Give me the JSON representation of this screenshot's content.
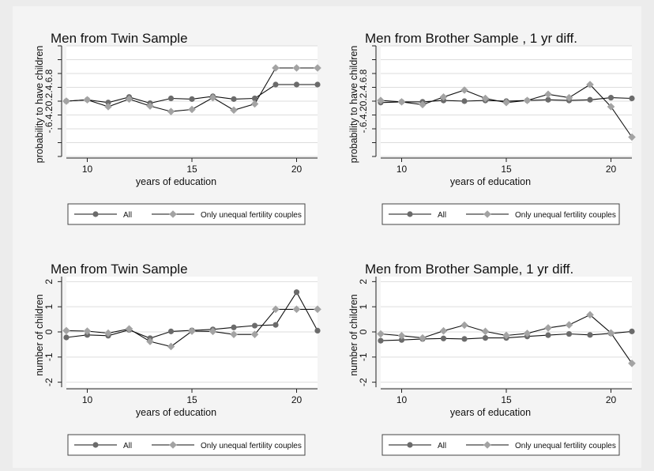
{
  "legend_labels": [
    "All",
    "Only unequal fertility couples"
  ],
  "colors": {
    "all": "#6b6b6b",
    "unequal": "#a3a3a3",
    "line": "#111111",
    "grid": "#dddddd",
    "plot_bg": "#ffffff",
    "panel_bg": "#f4f4f4",
    "page_bg": "#ececec"
  },
  "chart_data": [
    {
      "type": "line",
      "title": "Men from Twin Sample",
      "xlabel": "years of education",
      "ylabel": "probability to have children",
      "xlim": [
        9,
        21
      ],
      "ylim": [
        -0.8,
        0.8
      ],
      "xticks": [
        10,
        15,
        20
      ],
      "yticks": [
        -0.8,
        -0.6,
        -0.4,
        -0.2,
        0,
        0.2,
        0.4,
        0.6,
        0.8
      ],
      "ytick_text": "-.6.4.20.2.4.6.8",
      "x": [
        9,
        10,
        11,
        12,
        13,
        14,
        15,
        16,
        17,
        18,
        19,
        20,
        21
      ],
      "series": [
        {
          "name": "All",
          "values": [
            0.0,
            0.02,
            -0.02,
            0.06,
            -0.03,
            0.04,
            0.03,
            0.07,
            0.03,
            0.04,
            0.24,
            0.24,
            0.24
          ]
        },
        {
          "name": "Only unequal fertility couples",
          "values": [
            0.0,
            0.02,
            -0.08,
            0.03,
            -0.07,
            -0.15,
            -0.12,
            0.05,
            -0.13,
            -0.04,
            0.48,
            0.48,
            0.48
          ]
        }
      ]
    },
    {
      "type": "line",
      "title": "Men from Brother Sample , 1 yr diff.",
      "xlabel": "years of education",
      "ylabel": "probability to have children",
      "xlim": [
        9,
        21
      ],
      "ylim": [
        -0.8,
        0.8
      ],
      "xticks": [
        10,
        15,
        20
      ],
      "yticks": [
        -0.8,
        -0.6,
        -0.4,
        -0.2,
        0,
        0.2,
        0.4,
        0.6,
        0.8
      ],
      "ytick_text": "-.6.4.20.2.4.6.8",
      "x": [
        9,
        10,
        11,
        12,
        13,
        14,
        15,
        16,
        17,
        18,
        19,
        20,
        21
      ],
      "series": [
        {
          "name": "All",
          "values": [
            -0.02,
            -0.01,
            -0.01,
            0.01,
            0.0,
            0.01,
            0.0,
            0.01,
            0.02,
            0.01,
            0.02,
            0.05,
            0.04
          ]
        },
        {
          "name": "Only unequal fertility couples",
          "values": [
            0.01,
            -0.01,
            -0.05,
            0.06,
            0.16,
            0.04,
            -0.02,
            0.01,
            0.1,
            0.05,
            0.24,
            -0.08,
            -0.52
          ]
        }
      ]
    },
    {
      "type": "line",
      "title": "Men from Twin Sample",
      "xlabel": "years of education",
      "ylabel": "number of children",
      "xlim": [
        9,
        21
      ],
      "ylim": [
        -2.2,
        2.2
      ],
      "xticks": [
        10,
        15,
        20
      ],
      "yticks": [
        -2,
        -1,
        0,
        1,
        2
      ],
      "ytick_text": "",
      "x": [
        9,
        10,
        11,
        12,
        13,
        14,
        15,
        16,
        17,
        18,
        19,
        20,
        21
      ],
      "series": [
        {
          "name": "All",
          "values": [
            -0.22,
            -0.12,
            -0.15,
            0.08,
            -0.25,
            0.02,
            0.06,
            0.1,
            0.18,
            0.25,
            0.28,
            1.58,
            0.05
          ]
        },
        {
          "name": "Only unequal fertility couples",
          "values": [
            0.05,
            0.03,
            -0.05,
            0.12,
            -0.38,
            -0.58,
            0.03,
            0.02,
            -0.1,
            -0.1,
            0.9,
            0.9,
            0.9
          ]
        }
      ]
    },
    {
      "type": "line",
      "title": "Men from Brother Sample, 1 yr diff.",
      "xlabel": "years of education",
      "ylabel": "number of children",
      "xlim": [
        9,
        21
      ],
      "ylim": [
        -2.2,
        2.2
      ],
      "xticks": [
        10,
        15,
        20
      ],
      "yticks": [
        -2,
        -1,
        0,
        1,
        2
      ],
      "ytick_text": "",
      "x": [
        9,
        10,
        11,
        12,
        13,
        14,
        15,
        16,
        17,
        18,
        19,
        20,
        21
      ],
      "series": [
        {
          "name": "All",
          "values": [
            -0.35,
            -0.32,
            -0.28,
            -0.26,
            -0.28,
            -0.24,
            -0.24,
            -0.18,
            -0.13,
            -0.08,
            -0.12,
            -0.06,
            0.02
          ]
        },
        {
          "name": "Only unequal fertility couples",
          "values": [
            -0.08,
            -0.15,
            -0.24,
            0.04,
            0.27,
            0.02,
            -0.14,
            -0.06,
            0.16,
            0.28,
            0.68,
            -0.04,
            -1.25
          ]
        }
      ]
    }
  ]
}
